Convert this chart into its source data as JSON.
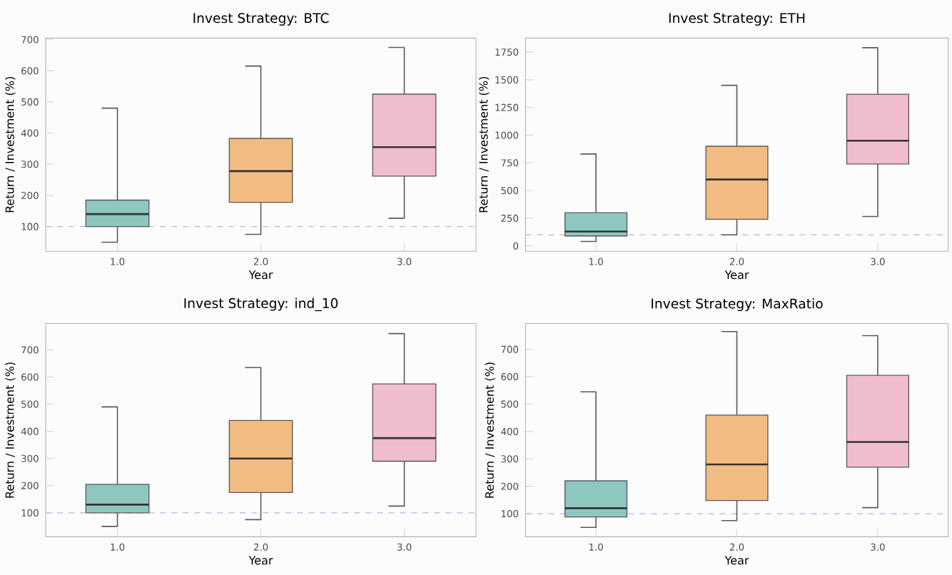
{
  "chart_data": [
    {
      "type": "box",
      "title": "Invest Strategy: BTC",
      "xlabel": "Year",
      "ylabel": "Return / Investment (%)",
      "categories": [
        "1.0",
        "2.0",
        "3.0"
      ],
      "colors": [
        "#8ec6c0",
        "#f0bc82",
        "#f0bcd0"
      ],
      "boxes": [
        {
          "low": 50,
          "q1": 100,
          "median": 140,
          "q3": 185,
          "high": 480
        },
        {
          "low": 75,
          "q1": 178,
          "median": 278,
          "q3": 383,
          "high": 615
        },
        {
          "low": 127,
          "q1": 262,
          "median": 355,
          "q3": 525,
          "high": 675
        }
      ],
      "ylim": [
        21,
        705
      ],
      "yticks": [
        100,
        200,
        300,
        400,
        500,
        600,
        700
      ],
      "ref_lines": [
        {
          "axis": "y",
          "value": 100,
          "color": "#b4b4f0",
          "line_style": "dashed"
        }
      ]
    },
    {
      "type": "box",
      "title": "Invest Strategy: ETH",
      "xlabel": "Year",
      "ylabel": "Return / Investment (%)",
      "categories": [
        "1.0",
        "2.0",
        "3.0"
      ],
      "colors": [
        "#8ec6c0",
        "#f0bc82",
        "#f0bcd0"
      ],
      "boxes": [
        {
          "low": 40,
          "q1": 90,
          "median": 130,
          "q3": 300,
          "high": 830
        },
        {
          "low": 100,
          "q1": 240,
          "median": 600,
          "q3": 900,
          "high": 1450
        },
        {
          "low": 265,
          "q1": 740,
          "median": 950,
          "q3": 1370,
          "high": 1790
        }
      ],
      "ylim": [
        -48,
        1877
      ],
      "yticks": [
        0,
        250,
        500,
        750,
        1000,
        1250,
        1500,
        1750
      ],
      "ref_lines": [
        {
          "axis": "y",
          "value": 100,
          "color": "#b4b4f0",
          "line_style": "dashed"
        }
      ]
    },
    {
      "type": "box",
      "title": "Invest Strategy: ind_10",
      "xlabel": "Year",
      "ylabel": "Return / Investment (%)",
      "categories": [
        "1.0",
        "2.0",
        "3.0"
      ],
      "colors": [
        "#8ec6c0",
        "#f0bc82",
        "#f0bcd0"
      ],
      "boxes": [
        {
          "low": 50,
          "q1": 100,
          "median": 130,
          "q3": 205,
          "high": 490
        },
        {
          "low": 75,
          "q1": 175,
          "median": 300,
          "q3": 440,
          "high": 635
        },
        {
          "low": 125,
          "q1": 290,
          "median": 375,
          "q3": 575,
          "high": 760
        }
      ],
      "ylim": [
        12,
        797
      ],
      "yticks": [
        100,
        200,
        300,
        400,
        500,
        600,
        700
      ],
      "ref_lines": [
        {
          "axis": "y",
          "value": 100,
          "color": "#b4b4f0",
          "line_style": "dashed"
        }
      ]
    },
    {
      "type": "box",
      "title": "Invest Strategy: MaxRatio",
      "xlabel": "Year",
      "ylabel": "Return / Investment (%)",
      "categories": [
        "1.0",
        "2.0",
        "3.0"
      ],
      "colors": [
        "#8ec6c0",
        "#f0bc82",
        "#f0bcd0"
      ],
      "boxes": [
        {
          "low": 50,
          "q1": 88,
          "median": 120,
          "q3": 220,
          "high": 545
        },
        {
          "low": 75,
          "q1": 148,
          "median": 280,
          "q3": 460,
          "high": 765
        },
        {
          "low": 122,
          "q1": 270,
          "median": 362,
          "q3": 605,
          "high": 750
        }
      ],
      "ylim": [
        16,
        794
      ],
      "yticks": [
        100,
        200,
        300,
        400,
        500,
        600,
        700
      ],
      "ref_lines": [
        {
          "axis": "y",
          "value": 100,
          "color": "#b4b4f0",
          "line_style": "dashed"
        }
      ]
    }
  ]
}
